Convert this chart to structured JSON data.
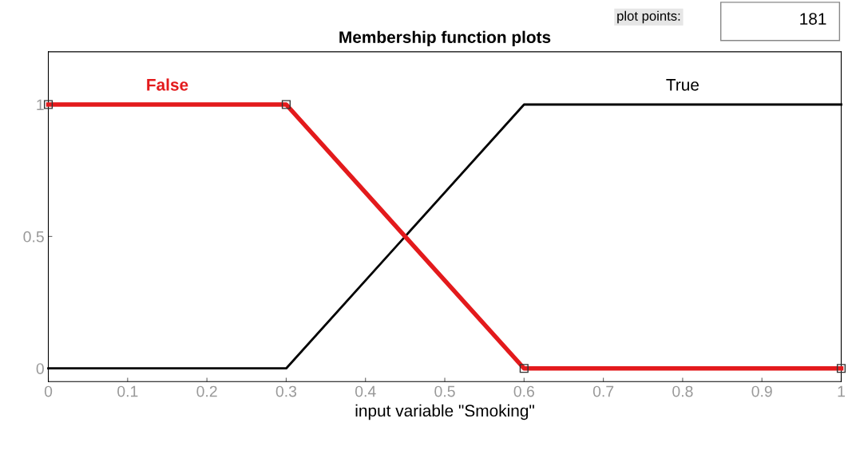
{
  "chart_data": {
    "type": "line",
    "title": "Membership function plots",
    "xlabel": "input variable \"Smoking\"",
    "annotations": [
      "plot points:",
      "181"
    ],
    "series": [
      {
        "name": "True",
        "color": "#000000",
        "x": [
          0,
          0.3,
          0.6,
          1
        ],
        "values": [
          0,
          0,
          1,
          1
        ],
        "marker": "none"
      },
      {
        "name": "False",
        "color": "#e31a1c",
        "x": [
          0,
          0.3,
          0.6,
          1
        ],
        "values": [
          1,
          1,
          0,
          0
        ],
        "marker": "square"
      }
    ],
    "xlim": [
      0,
      1
    ],
    "ylim": [
      -0.05,
      1.2
    ],
    "xticks": [
      0,
      0.1,
      0.2,
      0.3,
      0.4,
      0.5,
      0.6,
      0.7,
      0.8,
      0.9,
      1
    ],
    "yticks": [
      0,
      0.5,
      1
    ],
    "grid": false,
    "legend": false
  }
}
